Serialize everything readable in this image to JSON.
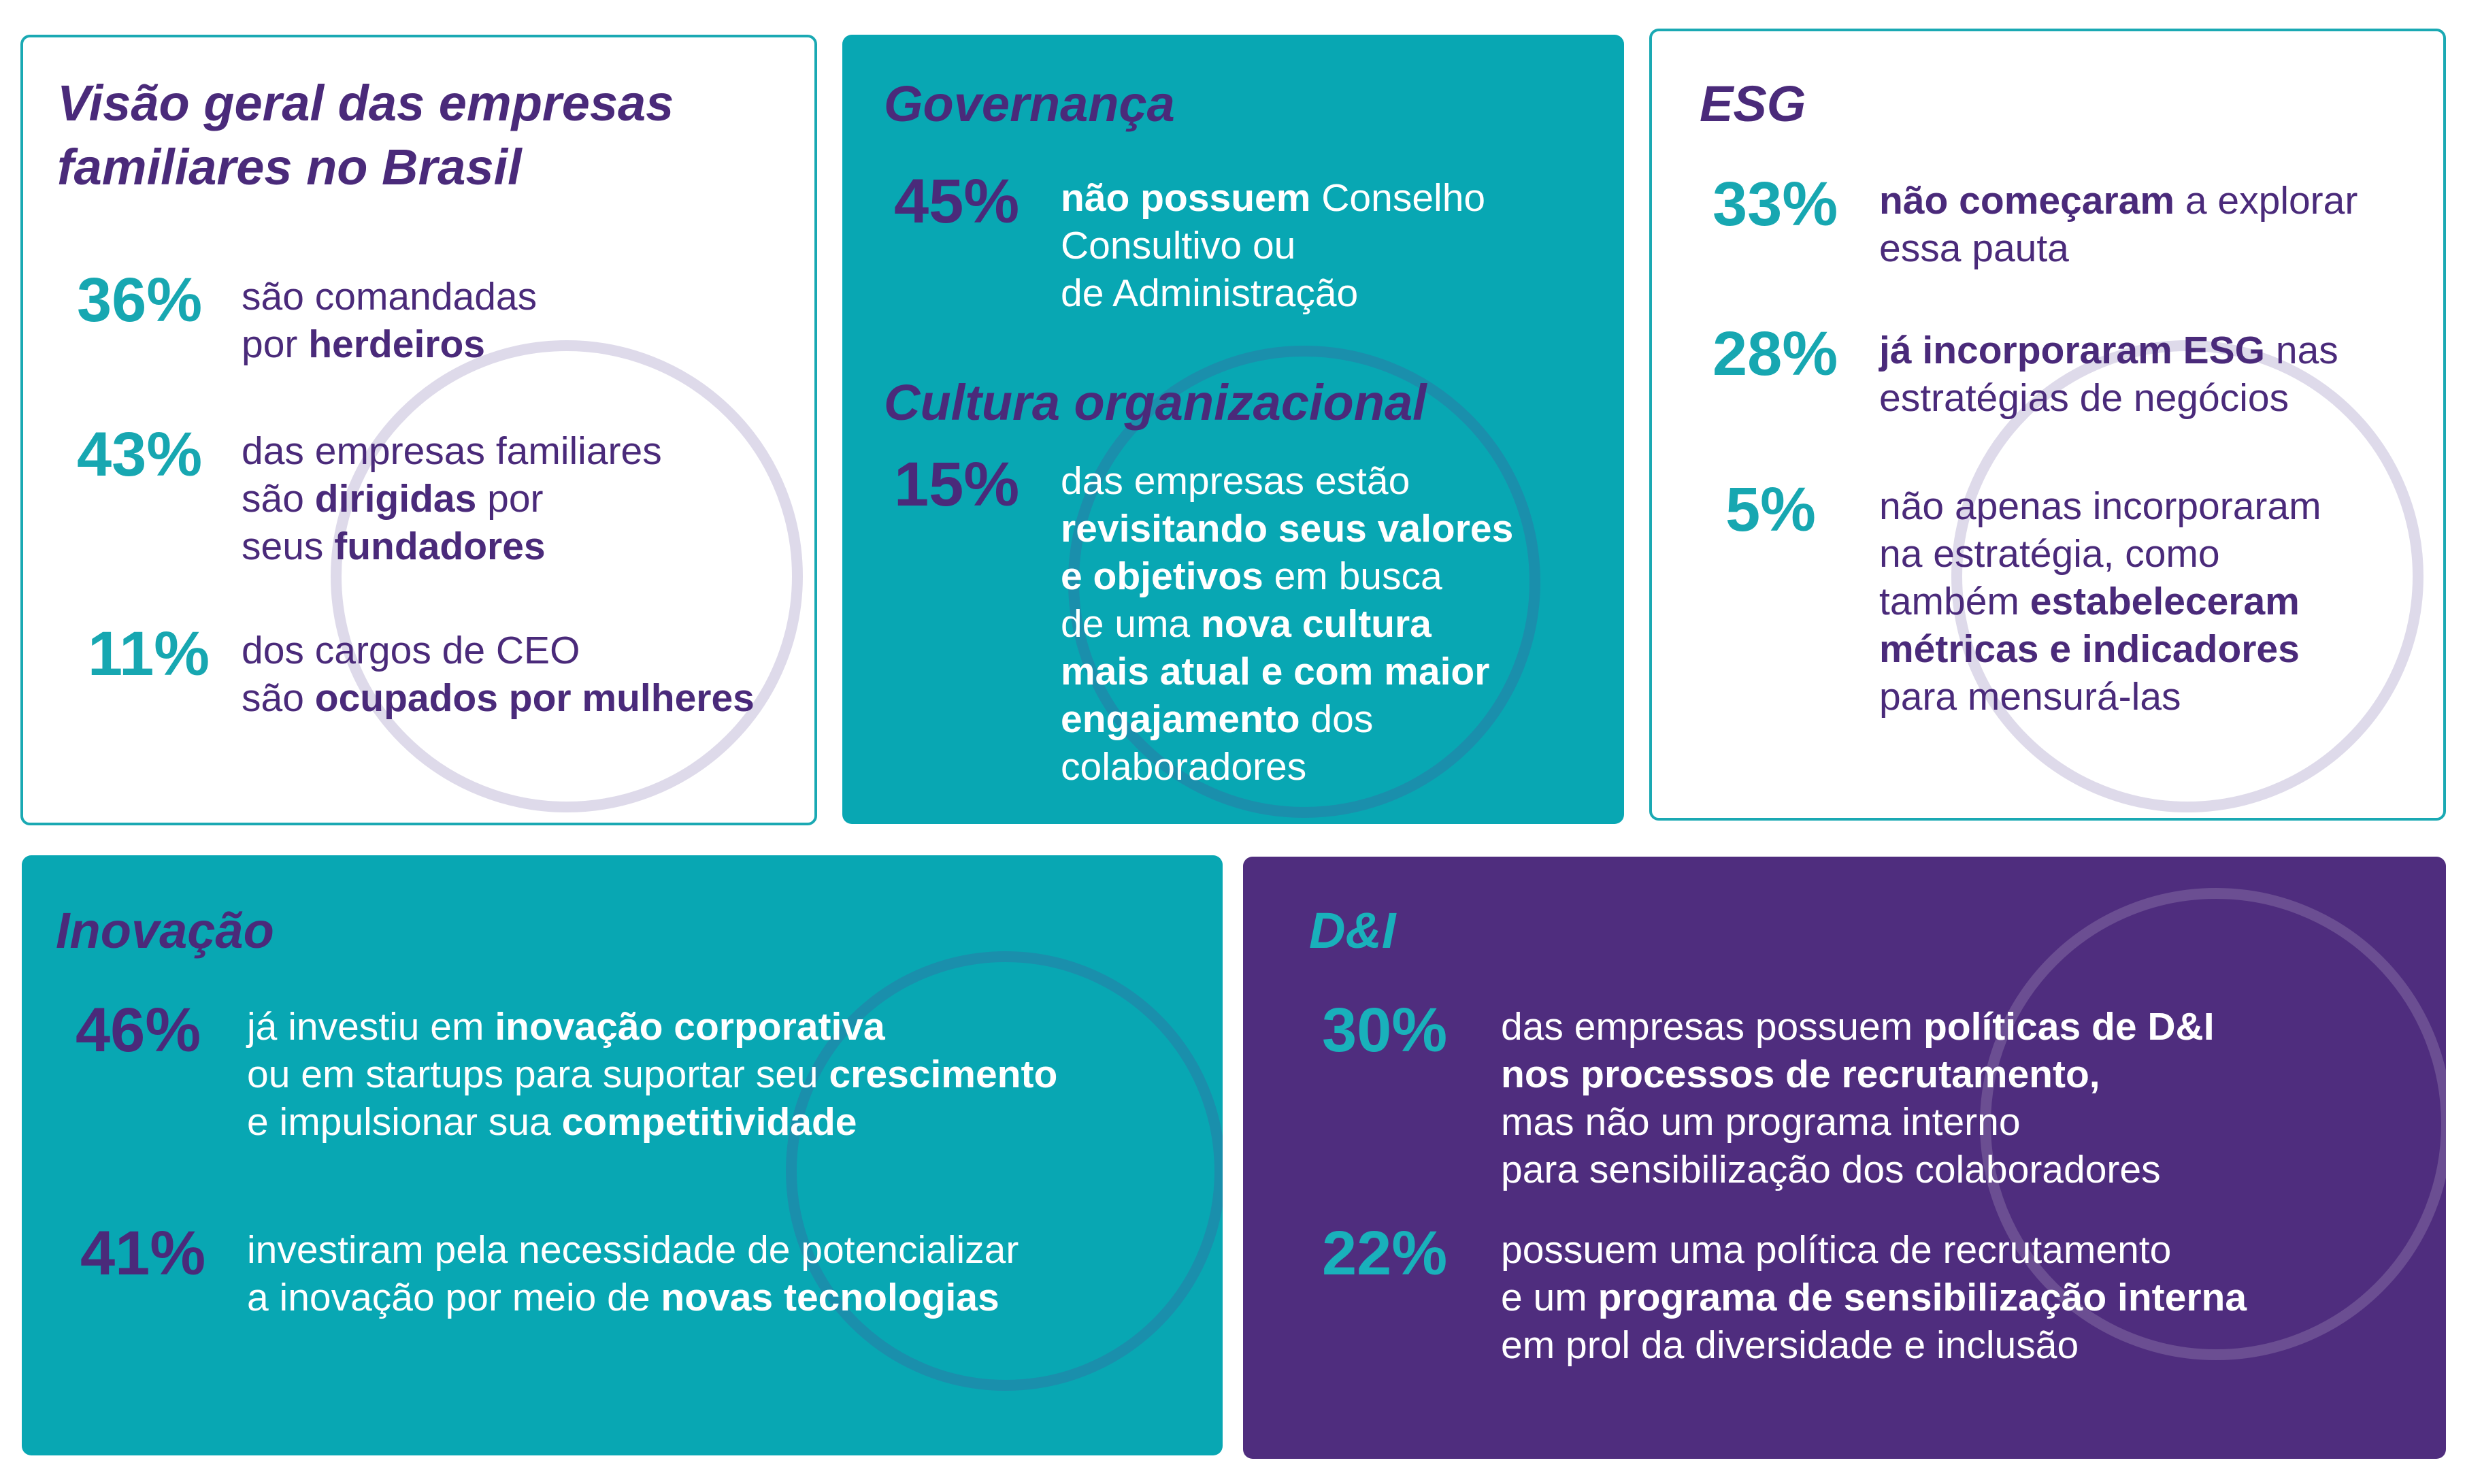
{
  "boxes": [
    {
      "id": "visao-geral",
      "titles": [
        "Visão geral das empresas\nfamiliares no Brasil"
      ],
      "stats": [
        {
          "pct": "36%",
          "segments": [
            {
              "t": "são comandadas\npor "
            },
            {
              "t": "herdeiros",
              "b": true
            }
          ]
        },
        {
          "pct": "43%",
          "segments": [
            {
              "t": "das empresas familiares\nsão "
            },
            {
              "t": "dirigidas",
              "b": true
            },
            {
              "t": " por\nseus "
            },
            {
              "t": "fundadores",
              "b": true
            }
          ]
        },
        {
          "pct": "11%",
          "segments": [
            {
              "t": "dos cargos de CEO\nsão "
            },
            {
              "t": "ocupados por mulheres",
              "b": true
            }
          ]
        }
      ]
    },
    {
      "id": "governanca",
      "titles": [
        "Governança",
        "Cultura organizacional"
      ],
      "stats": [
        {
          "pct": "45%",
          "segments": [
            {
              "t": "não possuem",
              "b": true
            },
            {
              "t": " Conselho\nConsultivo ou\nde Administração"
            }
          ]
        },
        {
          "pct": "15%",
          "segments": [
            {
              "t": "das empresas estão\n"
            },
            {
              "t": "revisitando seus valores\ne objetivos",
              "b": true
            },
            {
              "t": " em busca\nde uma "
            },
            {
              "t": "nova cultura\nmais atual e com maior\nengajamento",
              "b": true
            },
            {
              "t": " dos\ncolaboradores"
            }
          ]
        }
      ]
    },
    {
      "id": "esg",
      "titles": [
        "ESG"
      ],
      "stats": [
        {
          "pct": "33%",
          "segments": [
            {
              "t": "não começaram",
              "b": true
            },
            {
              "t": " a explorar\nessa pauta"
            }
          ]
        },
        {
          "pct": "28%",
          "segments": [
            {
              "t": "já incorporaram ESG",
              "b": true
            },
            {
              "t": " nas\nestratégias de negócios"
            }
          ]
        },
        {
          "pct": "5%",
          "segments": [
            {
              "t": "não apenas incorporaram\nna estratégia, como\ntambém "
            },
            {
              "t": "estabeleceram\nmétricas e indicadores",
              "b": true
            },
            {
              "t": "\npara mensurá-las"
            }
          ]
        }
      ]
    },
    {
      "id": "inovacao",
      "titles": [
        "Inovação"
      ],
      "stats": [
        {
          "pct": "46%",
          "segments": [
            {
              "t": "já investiu em "
            },
            {
              "t": "inovação corporativa",
              "b": true
            },
            {
              "t": "\nou em startups para suportar seu "
            },
            {
              "t": "crescimento",
              "b": true
            },
            {
              "t": "\ne impulsionar sua "
            },
            {
              "t": "competitividade",
              "b": true
            }
          ]
        },
        {
          "pct": "41%",
          "segments": [
            {
              "t": "investiram pela necessidade de potencializar\na inovação por meio de "
            },
            {
              "t": "novas tecnologias",
              "b": true
            }
          ]
        }
      ]
    },
    {
      "id": "dei",
      "titles": [
        "D&I"
      ],
      "stats": [
        {
          "pct": "30%",
          "segments": [
            {
              "t": "das empresas possuem "
            },
            {
              "t": "políticas de D&I\nnos processos de recrutamento,",
              "b": true
            },
            {
              "t": "\nmas não um programa interno\npara sensibilização dos colaboradores"
            }
          ]
        },
        {
          "pct": "22%",
          "segments": [
            {
              "t": "possuem uma política de recrutamento\ne um "
            },
            {
              "t": "programa de sensibilização interna",
              "b": true
            },
            {
              "t": "\nem prol da diversidade e inclusão"
            }
          ]
        }
      ]
    }
  ],
  "colors": {
    "teal": "#08a7b3",
    "purple": "#4f2d7e",
    "text_purple": "#4a2a7a"
  }
}
